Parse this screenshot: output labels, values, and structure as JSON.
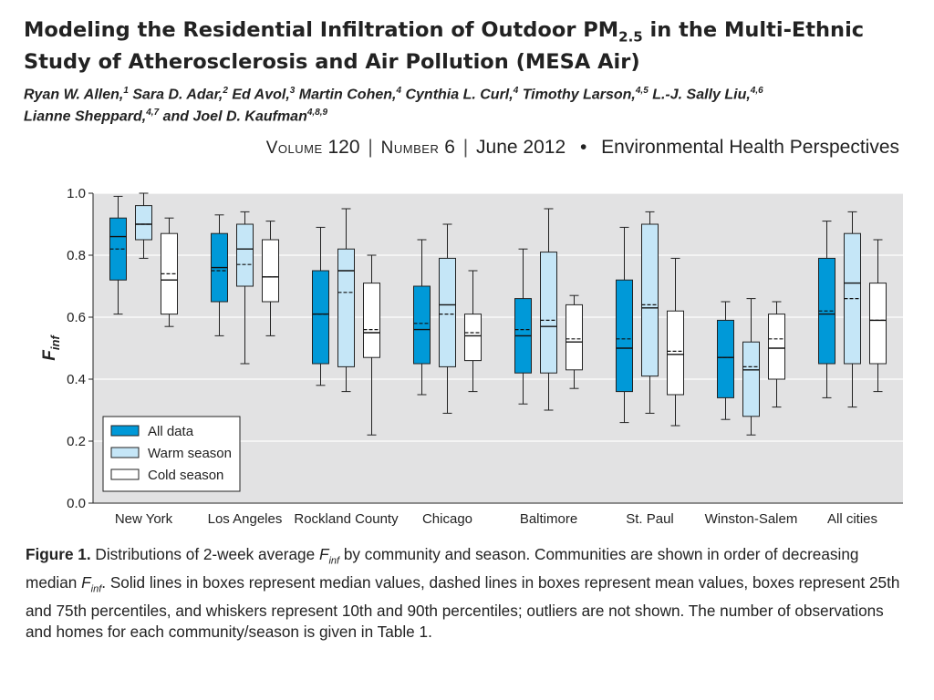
{
  "header": {
    "title_part1": "Modeling the Residential Infiltration of Outdoor PM",
    "title_sub": "2.5",
    "title_part2": " in the Multi-Ethnic Study of Atherosclerosis and Air Pollution (MESA Air)",
    "authors": [
      {
        "name": "Ryan W. Allen,",
        "sup": "1"
      },
      {
        "name": " Sara D. Adar,",
        "sup": "2"
      },
      {
        "name": " Ed Avol,",
        "sup": "3"
      },
      {
        "name": " Martin Cohen,",
        "sup": "4"
      },
      {
        "name": " Cynthia L. Curl,",
        "sup": "4"
      },
      {
        "name": " Timothy Larson,",
        "sup": "4,5"
      },
      {
        "name": " L.-J. Sally Liu,",
        "sup": "4,6"
      },
      {
        "name": " Lianne Sheppard,",
        "sup": "4,7"
      },
      {
        "name": " and Joel D. Kaufman",
        "sup": "4,8,9"
      }
    ],
    "journal": {
      "volume_label": "Volume",
      "volume": "120",
      "number_label": "Number",
      "number": "6",
      "date": "June 2012",
      "bullet": "•",
      "name": "Environmental Health Perspectives"
    }
  },
  "chart_data": {
    "type": "boxplot",
    "ylabel_main": "F",
    "ylabel_sub": "inf",
    "ylim": [
      0.0,
      1.0
    ],
    "yticks": [
      "0.0",
      "0.2",
      "0.4",
      "0.6",
      "0.8",
      "1.0"
    ],
    "grid": true,
    "legend_position": "bottom-left",
    "categories": [
      "New York",
      "Los Angeles",
      "Rockland County",
      "Chicago",
      "Baltimore",
      "St. Paul",
      "Winston-Salem",
      "All cities"
    ],
    "series": [
      {
        "name": "All data",
        "color": "#0099d8",
        "boxes": [
          {
            "p10": 0.61,
            "q1": 0.72,
            "median": 0.86,
            "mean": 0.82,
            "q3": 0.92,
            "p90": 0.99
          },
          {
            "p10": 0.54,
            "q1": 0.65,
            "median": 0.76,
            "mean": 0.75,
            "q3": 0.87,
            "p90": 0.93
          },
          {
            "p10": 0.38,
            "q1": 0.45,
            "median": 0.61,
            "mean": 0.61,
            "q3": 0.75,
            "p90": 0.89
          },
          {
            "p10": 0.35,
            "q1": 0.45,
            "median": 0.56,
            "mean": 0.58,
            "q3": 0.7,
            "p90": 0.85
          },
          {
            "p10": 0.32,
            "q1": 0.42,
            "median": 0.54,
            "mean": 0.56,
            "q3": 0.66,
            "p90": 0.82
          },
          {
            "p10": 0.26,
            "q1": 0.36,
            "median": 0.5,
            "mean": 0.53,
            "q3": 0.72,
            "p90": 0.89
          },
          {
            "p10": 0.27,
            "q1": 0.34,
            "median": 0.47,
            "mean": 0.47,
            "q3": 0.59,
            "p90": 0.65
          },
          {
            "p10": 0.34,
            "q1": 0.45,
            "median": 0.61,
            "mean": 0.62,
            "q3": 0.79,
            "p90": 0.91
          }
        ]
      },
      {
        "name": "Warm season",
        "color": "#c5e6f7",
        "boxes": [
          {
            "p10": 0.79,
            "q1": 0.85,
            "median": 0.9,
            "mean": 0.9,
            "q3": 0.96,
            "p90": 1.0
          },
          {
            "p10": 0.45,
            "q1": 0.7,
            "median": 0.82,
            "mean": 0.77,
            "q3": 0.9,
            "p90": 0.94
          },
          {
            "p10": 0.36,
            "q1": 0.44,
            "median": 0.75,
            "mean": 0.68,
            "q3": 0.82,
            "p90": 0.95
          },
          {
            "p10": 0.29,
            "q1": 0.44,
            "median": 0.64,
            "mean": 0.61,
            "q3": 0.79,
            "p90": 0.9
          },
          {
            "p10": 0.3,
            "q1": 0.42,
            "median": 0.57,
            "mean": 0.59,
            "q3": 0.81,
            "p90": 0.95
          },
          {
            "p10": 0.29,
            "q1": 0.41,
            "median": 0.63,
            "mean": 0.64,
            "q3": 0.9,
            "p90": 0.94
          },
          {
            "p10": 0.22,
            "q1": 0.28,
            "median": 0.43,
            "mean": 0.44,
            "q3": 0.52,
            "p90": 0.66
          },
          {
            "p10": 0.31,
            "q1": 0.45,
            "median": 0.71,
            "mean": 0.66,
            "q3": 0.87,
            "p90": 0.94
          }
        ]
      },
      {
        "name": "Cold season",
        "color": "#ffffff",
        "boxes": [
          {
            "p10": 0.57,
            "q1": 0.61,
            "median": 0.72,
            "mean": 0.74,
            "q3": 0.87,
            "p90": 0.92
          },
          {
            "p10": 0.54,
            "q1": 0.65,
            "median": 0.73,
            "mean": 0.73,
            "q3": 0.85,
            "p90": 0.91
          },
          {
            "p10": 0.22,
            "q1": 0.47,
            "median": 0.55,
            "mean": 0.56,
            "q3": 0.71,
            "p90": 0.8
          },
          {
            "p10": 0.36,
            "q1": 0.46,
            "median": 0.54,
            "mean": 0.55,
            "q3": 0.61,
            "p90": 0.75
          },
          {
            "p10": 0.37,
            "q1": 0.43,
            "median": 0.52,
            "mean": 0.53,
            "q3": 0.64,
            "p90": 0.67
          },
          {
            "p10": 0.25,
            "q1": 0.35,
            "median": 0.48,
            "mean": 0.49,
            "q3": 0.62,
            "p90": 0.79
          },
          {
            "p10": 0.31,
            "q1": 0.4,
            "median": 0.5,
            "mean": 0.53,
            "q3": 0.61,
            "p90": 0.65
          },
          {
            "p10": 0.36,
            "q1": 0.45,
            "median": 0.59,
            "mean": 0.59,
            "q3": 0.71,
            "p90": 0.85
          }
        ]
      }
    ]
  },
  "caption": {
    "figure_label": "Figure 1.",
    "part1": " Distributions of 2-week average ",
    "f_main": "F",
    "f_sub": "inf",
    "part2": " by community and season. Communities are shown in order of decreasing median ",
    "f2_main": "F",
    "f2_sub": "inf",
    "part3": ". Solid lines in boxes represent median values, dashed lines in boxes represent mean values, boxes represent 25th and 75th percentiles, and whiskers represent 10th and 90th percentiles; outliers are not shown. The number of observations and homes for each community/season is given in Table 1."
  }
}
